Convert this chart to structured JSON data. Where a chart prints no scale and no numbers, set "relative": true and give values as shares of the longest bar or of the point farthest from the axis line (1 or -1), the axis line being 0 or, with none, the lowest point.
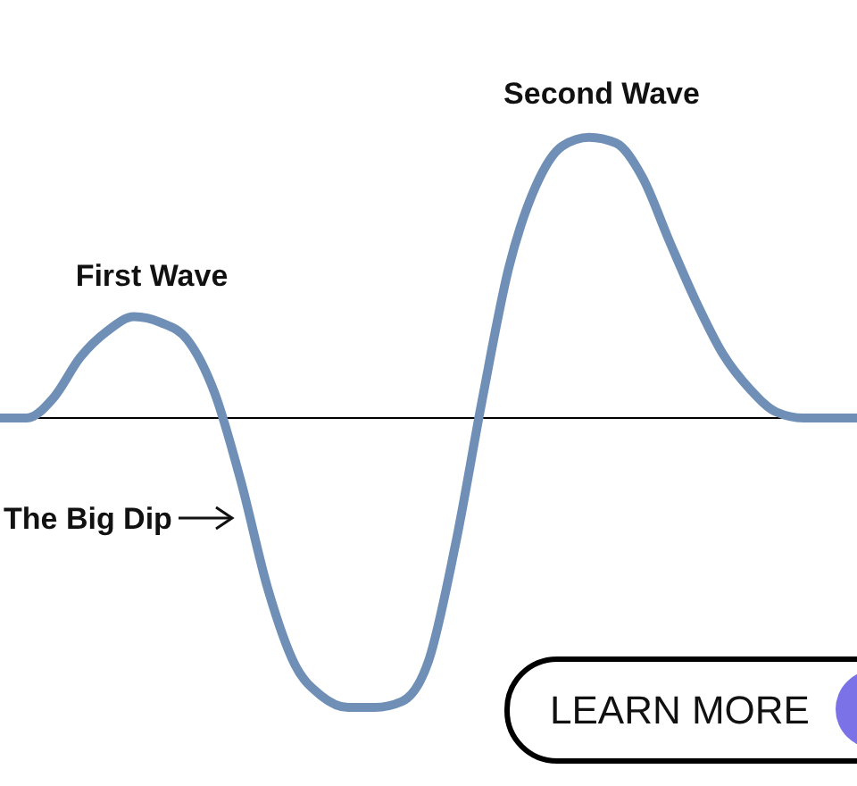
{
  "chart_data": {
    "type": "line",
    "relative": true,
    "categories": [
      null,
      null,
      null,
      null,
      null,
      null,
      null,
      null,
      null,
      null,
      null,
      null,
      null,
      null,
      null,
      null,
      null,
      null,
      null,
      null,
      null,
      null,
      null,
      null,
      null,
      null,
      null,
      null,
      null,
      null,
      null,
      null,
      null
    ],
    "series": [
      {
        "color": "#6f8fb6",
        "values": [
          0,
          0,
          0.07,
          0.21,
          0.3,
          0.35,
          0.33,
          0.27,
          0.09,
          -0.22,
          -0.59,
          -0.85,
          -0.96,
          -1,
          -1,
          -0.98,
          -0.84,
          -0.44,
          0.06,
          0.52,
          0.8,
          0.94,
          0.97,
          0.95,
          0.83,
          0.61,
          0.4,
          0.22,
          0.1,
          0.02,
          0,
          0,
          0
        ]
      }
    ],
    "annotations": [
      "First Wave",
      "Second Wave",
      "The Big Dip",
      "LEARN MORE"
    ],
    "marker": "none",
    "line_style": "solid",
    "grid": false
  }
}
